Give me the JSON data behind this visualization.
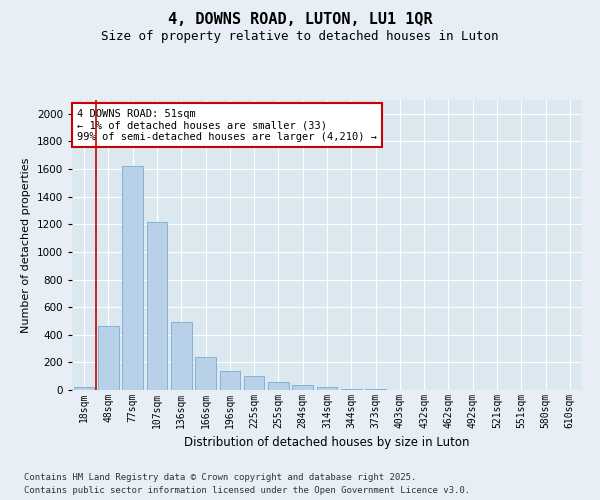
{
  "title": "4, DOWNS ROAD, LUTON, LU1 1QR",
  "subtitle": "Size of property relative to detached houses in Luton",
  "xlabel": "Distribution of detached houses by size in Luton",
  "ylabel": "Number of detached properties",
  "categories": [
    "18sqm",
    "48sqm",
    "77sqm",
    "107sqm",
    "136sqm",
    "166sqm",
    "196sqm",
    "225sqm",
    "255sqm",
    "284sqm",
    "314sqm",
    "344sqm",
    "373sqm",
    "403sqm",
    "432sqm",
    "462sqm",
    "492sqm",
    "521sqm",
    "551sqm",
    "580sqm",
    "610sqm"
  ],
  "values": [
    20,
    460,
    1620,
    1220,
    490,
    240,
    140,
    100,
    55,
    35,
    20,
    10,
    5,
    3,
    2,
    2,
    1,
    1,
    1,
    0,
    0
  ],
  "bar_color": "#b8d0e8",
  "bar_edge_color": "#7aaad0",
  "vline_color": "#cc0000",
  "annotation_text": "4 DOWNS ROAD: 51sqm\n← 1% of detached houses are smaller (33)\n99% of semi-detached houses are larger (4,210) →",
  "annotation_box_color": "#cc0000",
  "ylim": [
    0,
    2100
  ],
  "yticks": [
    0,
    200,
    400,
    600,
    800,
    1000,
    1200,
    1400,
    1600,
    1800,
    2000
  ],
  "bg_color": "#e8eef5",
  "plot_bg_color": "#dce8f0",
  "footer_line1": "Contains HM Land Registry data © Crown copyright and database right 2025.",
  "footer_line2": "Contains public sector information licensed under the Open Government Licence v3.0.",
  "title_fontsize": 11,
  "subtitle_fontsize": 9,
  "tick_fontsize": 7,
  "ylabel_fontsize": 8,
  "xlabel_fontsize": 8.5,
  "annotation_fontsize": 7.5,
  "footer_fontsize": 6.5
}
